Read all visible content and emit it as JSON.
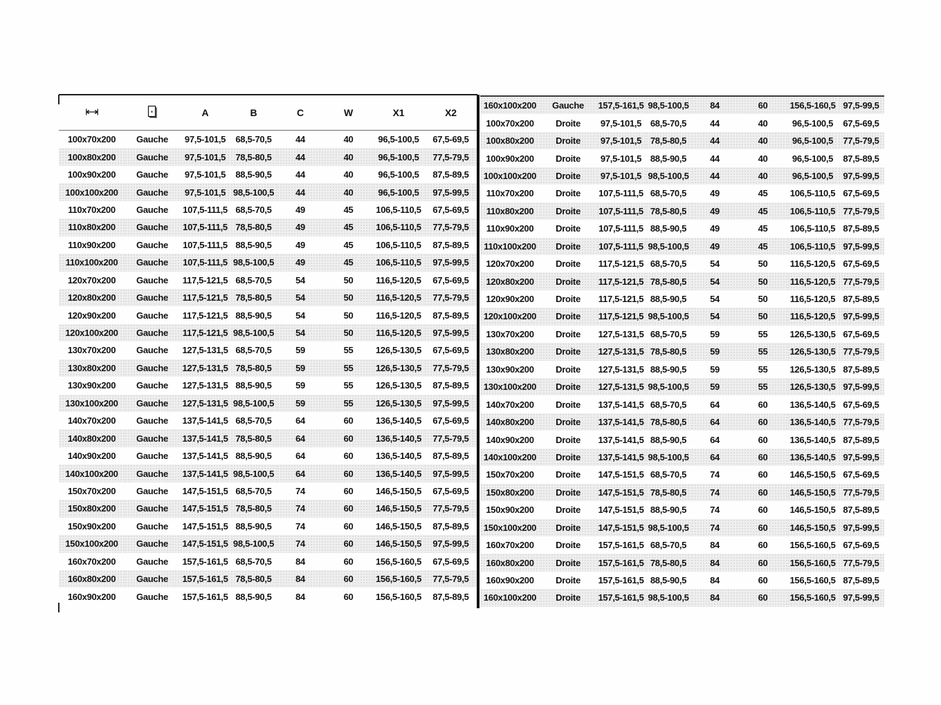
{
  "colors": {
    "stripe": "#efefef",
    "divider": "#141414",
    "text": "#121212"
  },
  "left_table": {
    "header_icons": [
      "width-dimension-icon",
      "door-side-icon"
    ],
    "headers": [
      "A",
      "B",
      "C",
      "W",
      "X1",
      "X2"
    ],
    "rows": [
      [
        "100x70x200",
        "Gauche",
        "97,5-101,5",
        "68,5-70,5",
        "44",
        "40",
        "96,5-100,5",
        "67,5-69,5"
      ],
      [
        "100x80x200",
        "Gauche",
        "97,5-101,5",
        "78,5-80,5",
        "44",
        "40",
        "96,5-100,5",
        "77,5-79,5"
      ],
      [
        "100x90x200",
        "Gauche",
        "97,5-101,5",
        "88,5-90,5",
        "44",
        "40",
        "96,5-100,5",
        "87,5-89,5"
      ],
      [
        "100x100x200",
        "Gauche",
        "97,5-101,5",
        "98,5-100,5",
        "44",
        "40",
        "96,5-100,5",
        "97,5-99,5"
      ],
      [
        "110x70x200",
        "Gauche",
        "107,5-111,5",
        "68,5-70,5",
        "49",
        "45",
        "106,5-110,5",
        "67,5-69,5"
      ],
      [
        "110x80x200",
        "Gauche",
        "107,5-111,5",
        "78,5-80,5",
        "49",
        "45",
        "106,5-110,5",
        "77,5-79,5"
      ],
      [
        "110x90x200",
        "Gauche",
        "107,5-111,5",
        "88,5-90,5",
        "49",
        "45",
        "106,5-110,5",
        "87,5-89,5"
      ],
      [
        "110x100x200",
        "Gauche",
        "107,5-111,5",
        "98,5-100,5",
        "49",
        "45",
        "106,5-110,5",
        "97,5-99,5"
      ],
      [
        "120x70x200",
        "Gauche",
        "117,5-121,5",
        "68,5-70,5",
        "54",
        "50",
        "116,5-120,5",
        "67,5-69,5"
      ],
      [
        "120x80x200",
        "Gauche",
        "117,5-121,5",
        "78,5-80,5",
        "54",
        "50",
        "116,5-120,5",
        "77,5-79,5"
      ],
      [
        "120x90x200",
        "Gauche",
        "117,5-121,5",
        "88,5-90,5",
        "54",
        "50",
        "116,5-120,5",
        "87,5-89,5"
      ],
      [
        "120x100x200",
        "Gauche",
        "117,5-121,5",
        "98,5-100,5",
        "54",
        "50",
        "116,5-120,5",
        "97,5-99,5"
      ],
      [
        "130x70x200",
        "Gauche",
        "127,5-131,5",
        "68,5-70,5",
        "59",
        "55",
        "126,5-130,5",
        "67,5-69,5"
      ],
      [
        "130x80x200",
        "Gauche",
        "127,5-131,5",
        "78,5-80,5",
        "59",
        "55",
        "126,5-130,5",
        "77,5-79,5"
      ],
      [
        "130x90x200",
        "Gauche",
        "127,5-131,5",
        "88,5-90,5",
        "59",
        "55",
        "126,5-130,5",
        "87,5-89,5"
      ],
      [
        "130x100x200",
        "Gauche",
        "127,5-131,5",
        "98,5-100,5",
        "59",
        "55",
        "126,5-130,5",
        "97,5-99,5"
      ],
      [
        "140x70x200",
        "Gauche",
        "137,5-141,5",
        "68,5-70,5",
        "64",
        "60",
        "136,5-140,5",
        "67,5-69,5"
      ],
      [
        "140x80x200",
        "Gauche",
        "137,5-141,5",
        "78,5-80,5",
        "64",
        "60",
        "136,5-140,5",
        "77,5-79,5"
      ],
      [
        "140x90x200",
        "Gauche",
        "137,5-141,5",
        "88,5-90,5",
        "64",
        "60",
        "136,5-140,5",
        "87,5-89,5"
      ],
      [
        "140x100x200",
        "Gauche",
        "137,5-141,5",
        "98,5-100,5",
        "64",
        "60",
        "136,5-140,5",
        "97,5-99,5"
      ],
      [
        "150x70x200",
        "Gauche",
        "147,5-151,5",
        "68,5-70,5",
        "74",
        "60",
        "146,5-150,5",
        "67,5-69,5"
      ],
      [
        "150x80x200",
        "Gauche",
        "147,5-151,5",
        "78,5-80,5",
        "74",
        "60",
        "146,5-150,5",
        "77,5-79,5"
      ],
      [
        "150x90x200",
        "Gauche",
        "147,5-151,5",
        "88,5-90,5",
        "74",
        "60",
        "146,5-150,5",
        "87,5-89,5"
      ],
      [
        "150x100x200",
        "Gauche",
        "147,5-151,5",
        "98,5-100,5",
        "74",
        "60",
        "146,5-150,5",
        "97,5-99,5"
      ],
      [
        "160x70x200",
        "Gauche",
        "157,5-161,5",
        "68,5-70,5",
        "84",
        "60",
        "156,5-160,5",
        "67,5-69,5"
      ],
      [
        "160x80x200",
        "Gauche",
        "157,5-161,5",
        "78,5-80,5",
        "84",
        "60",
        "156,5-160,5",
        "77,5-79,5"
      ],
      [
        "160x90x200",
        "Gauche",
        "157,5-161,5",
        "88,5-90,5",
        "84",
        "60",
        "156,5-160,5",
        "87,5-89,5"
      ]
    ]
  },
  "right_table": {
    "rows": [
      [
        "160x100x200",
        "Gauche",
        "157,5-161,5",
        "98,5-100,5",
        "84",
        "60",
        "156,5-160,5",
        "97,5-99,5"
      ],
      [
        "100x70x200",
        "Droite",
        "97,5-101,5",
        "68,5-70,5",
        "44",
        "40",
        "96,5-100,5",
        "67,5-69,5"
      ],
      [
        "100x80x200",
        "Droite",
        "97,5-101,5",
        "78,5-80,5",
        "44",
        "40",
        "96,5-100,5",
        "77,5-79,5"
      ],
      [
        "100x90x200",
        "Droite",
        "97,5-101,5",
        "88,5-90,5",
        "44",
        "40",
        "96,5-100,5",
        "87,5-89,5"
      ],
      [
        "100x100x200",
        "Droite",
        "97,5-101,5",
        "98,5-100,5",
        "44",
        "40",
        "96,5-100,5",
        "97,5-99,5"
      ],
      [
        "110x70x200",
        "Droite",
        "107,5-111,5",
        "68,5-70,5",
        "49",
        "45",
        "106,5-110,5",
        "67,5-69,5"
      ],
      [
        "110x80x200",
        "Droite",
        "107,5-111,5",
        "78,5-80,5",
        "49",
        "45",
        "106,5-110,5",
        "77,5-79,5"
      ],
      [
        "110x90x200",
        "Droite",
        "107,5-111,5",
        "88,5-90,5",
        "49",
        "45",
        "106,5-110,5",
        "87,5-89,5"
      ],
      [
        "110x100x200",
        "Droite",
        "107,5-111,5",
        "98,5-100,5",
        "49",
        "45",
        "106,5-110,5",
        "97,5-99,5"
      ],
      [
        "120x70x200",
        "Droite",
        "117,5-121,5",
        "68,5-70,5",
        "54",
        "50",
        "116,5-120,5",
        "67,5-69,5"
      ],
      [
        "120x80x200",
        "Droite",
        "117,5-121,5",
        "78,5-80,5",
        "54",
        "50",
        "116,5-120,5",
        "77,5-79,5"
      ],
      [
        "120x90x200",
        "Droite",
        "117,5-121,5",
        "88,5-90,5",
        "54",
        "50",
        "116,5-120,5",
        "87,5-89,5"
      ],
      [
        "120x100x200",
        "Droite",
        "117,5-121,5",
        "98,5-100,5",
        "54",
        "50",
        "116,5-120,5",
        "97,5-99,5"
      ],
      [
        "130x70x200",
        "Droite",
        "127,5-131,5",
        "68,5-70,5",
        "59",
        "55",
        "126,5-130,5",
        "67,5-69,5"
      ],
      [
        "130x80x200",
        "Droite",
        "127,5-131,5",
        "78,5-80,5",
        "59",
        "55",
        "126,5-130,5",
        "77,5-79,5"
      ],
      [
        "130x90x200",
        "Droite",
        "127,5-131,5",
        "88,5-90,5",
        "59",
        "55",
        "126,5-130,5",
        "87,5-89,5"
      ],
      [
        "130x100x200",
        "Droite",
        "127,5-131,5",
        "98,5-100,5",
        "59",
        "55",
        "126,5-130,5",
        "97,5-99,5"
      ],
      [
        "140x70x200",
        "Droite",
        "137,5-141,5",
        "68,5-70,5",
        "64",
        "60",
        "136,5-140,5",
        "67,5-69,5"
      ],
      [
        "140x80x200",
        "Droite",
        "137,5-141,5",
        "78,5-80,5",
        "64",
        "60",
        "136,5-140,5",
        "77,5-79,5"
      ],
      [
        "140x90x200",
        "Droite",
        "137,5-141,5",
        "88,5-90,5",
        "64",
        "60",
        "136,5-140,5",
        "87,5-89,5"
      ],
      [
        "140x100x200",
        "Droite",
        "137,5-141,5",
        "98,5-100,5",
        "64",
        "60",
        "136,5-140,5",
        "97,5-99,5"
      ],
      [
        "150x70x200",
        "Droite",
        "147,5-151,5",
        "68,5-70,5",
        "74",
        "60",
        "146,5-150,5",
        "67,5-69,5"
      ],
      [
        "150x80x200",
        "Droite",
        "147,5-151,5",
        "78,5-80,5",
        "74",
        "60",
        "146,5-150,5",
        "77,5-79,5"
      ],
      [
        "150x90x200",
        "Droite",
        "147,5-151,5",
        "88,5-90,5",
        "74",
        "60",
        "146,5-150,5",
        "87,5-89,5"
      ],
      [
        "150x100x200",
        "Droite",
        "147,5-151,5",
        "98,5-100,5",
        "74",
        "60",
        "146,5-150,5",
        "97,5-99,5"
      ],
      [
        "160x70x200",
        "Droite",
        "157,5-161,5",
        "68,5-70,5",
        "84",
        "60",
        "156,5-160,5",
        "67,5-69,5"
      ],
      [
        "160x80x200",
        "Droite",
        "157,5-161,5",
        "78,5-80,5",
        "84",
        "60",
        "156,5-160,5",
        "77,5-79,5"
      ],
      [
        "160x90x200",
        "Droite",
        "157,5-161,5",
        "88,5-90,5",
        "84",
        "60",
        "156,5-160,5",
        "87,5-89,5"
      ],
      [
        "160x100x200",
        "Droite",
        "157,5-161,5",
        "98,5-100,5",
        "84",
        "60",
        "156,5-160,5",
        "97,5-99,5"
      ]
    ]
  }
}
